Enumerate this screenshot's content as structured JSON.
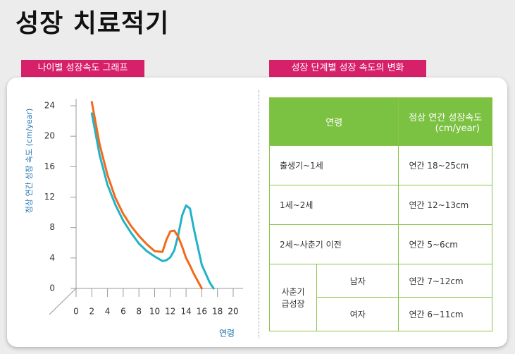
{
  "header": {
    "title": "성장 치료적기"
  },
  "tabs": [
    "나이별 성장속도 그래프",
    "성장 단계별 성장 속도의 변화"
  ],
  "chart_data": {
    "type": "line",
    "y_label": "정상 연간 성장 속도 (cm/year)",
    "x_label": "연령",
    "x": [
      2,
      3,
      4,
      5,
      6,
      7,
      8,
      9,
      10,
      11,
      11.5,
      12,
      12.5,
      13,
      13.5,
      14,
      14.5,
      15,
      16,
      17,
      17.5
    ],
    "series": [
      {
        "color": "#22b3c6",
        "values": [
          23,
          17.5,
          13.6,
          11,
          8.9,
          7.3,
          5.9,
          4.9,
          4.2,
          3.6,
          3.7,
          4.1,
          5,
          7,
          9.6,
          10.9,
          10.5,
          7.8,
          3.1,
          0.8,
          0
        ]
      },
      {
        "color": "#f26a1b",
        "values": [
          24.5,
          18.9,
          14.9,
          11.9,
          9.8,
          8.2,
          6.9,
          5.8,
          4.9,
          4.8,
          6.4,
          7.5,
          7.6,
          6.8,
          5.5,
          4,
          3,
          1.9,
          0,
          null,
          null
        ]
      }
    ],
    "xlim": [
      0,
      20
    ],
    "xticks": [
      0,
      2,
      4,
      6,
      8,
      10,
      12,
      14,
      16,
      18,
      20
    ],
    "ylim": [
      0,
      24
    ],
    "yticks": [
      0,
      4,
      8,
      12,
      16,
      20,
      24
    ]
  },
  "table": {
    "header": [
      "연령",
      "정상 연간 성장속도",
      "(cm/year)"
    ],
    "rows": [
      [
        "출생기~1세",
        "연간 18~25cm"
      ],
      [
        "1세~2세",
        "연간 12~13cm"
      ],
      [
        "2세~사춘기 이전",
        "연간 5~6cm"
      ]
    ],
    "group": {
      "label": [
        "사춘기",
        "급성장"
      ],
      "rows": [
        [
          "남자",
          "연간 7~12cm"
        ],
        [
          "여자",
          "연간 6~11cm"
        ]
      ]
    }
  }
}
